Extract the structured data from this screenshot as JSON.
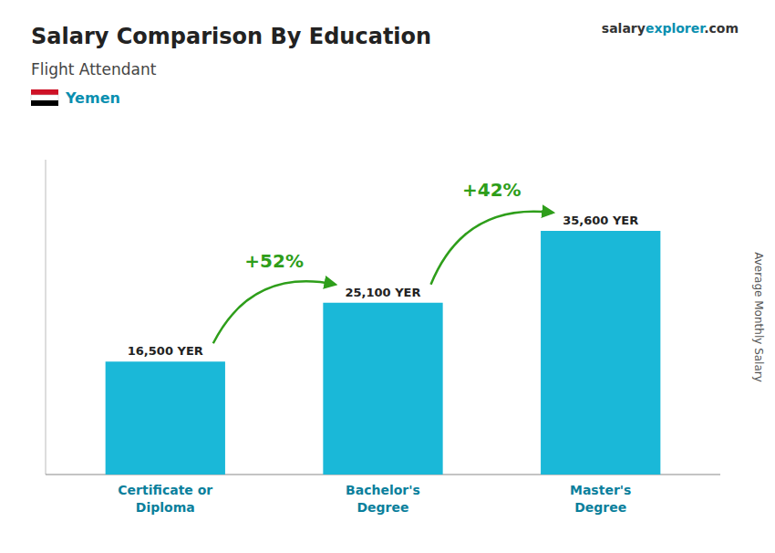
{
  "chart_data": {
    "type": "bar",
    "title": "Salary Comparison By Education",
    "subtitle": "Flight Attendant",
    "country": "Yemen",
    "brand": [
      "salary",
      "explorer",
      ".com"
    ],
    "ylabel": "Average Monthly Salary",
    "categories": [
      "Certificate or\nDiploma",
      "Bachelor's\nDegree",
      "Master's\nDegree"
    ],
    "values": [
      16500,
      25100,
      35600
    ],
    "value_labels": [
      "16,500 YER",
      "25,100 YER",
      "35,600 YER"
    ],
    "data_labels": true,
    "annotations": [
      "+52%",
      "+42%"
    ],
    "color": "#1ab8d8",
    "ylim": [
      0,
      46000
    ],
    "tick_labels": "x",
    "grid": false
  }
}
